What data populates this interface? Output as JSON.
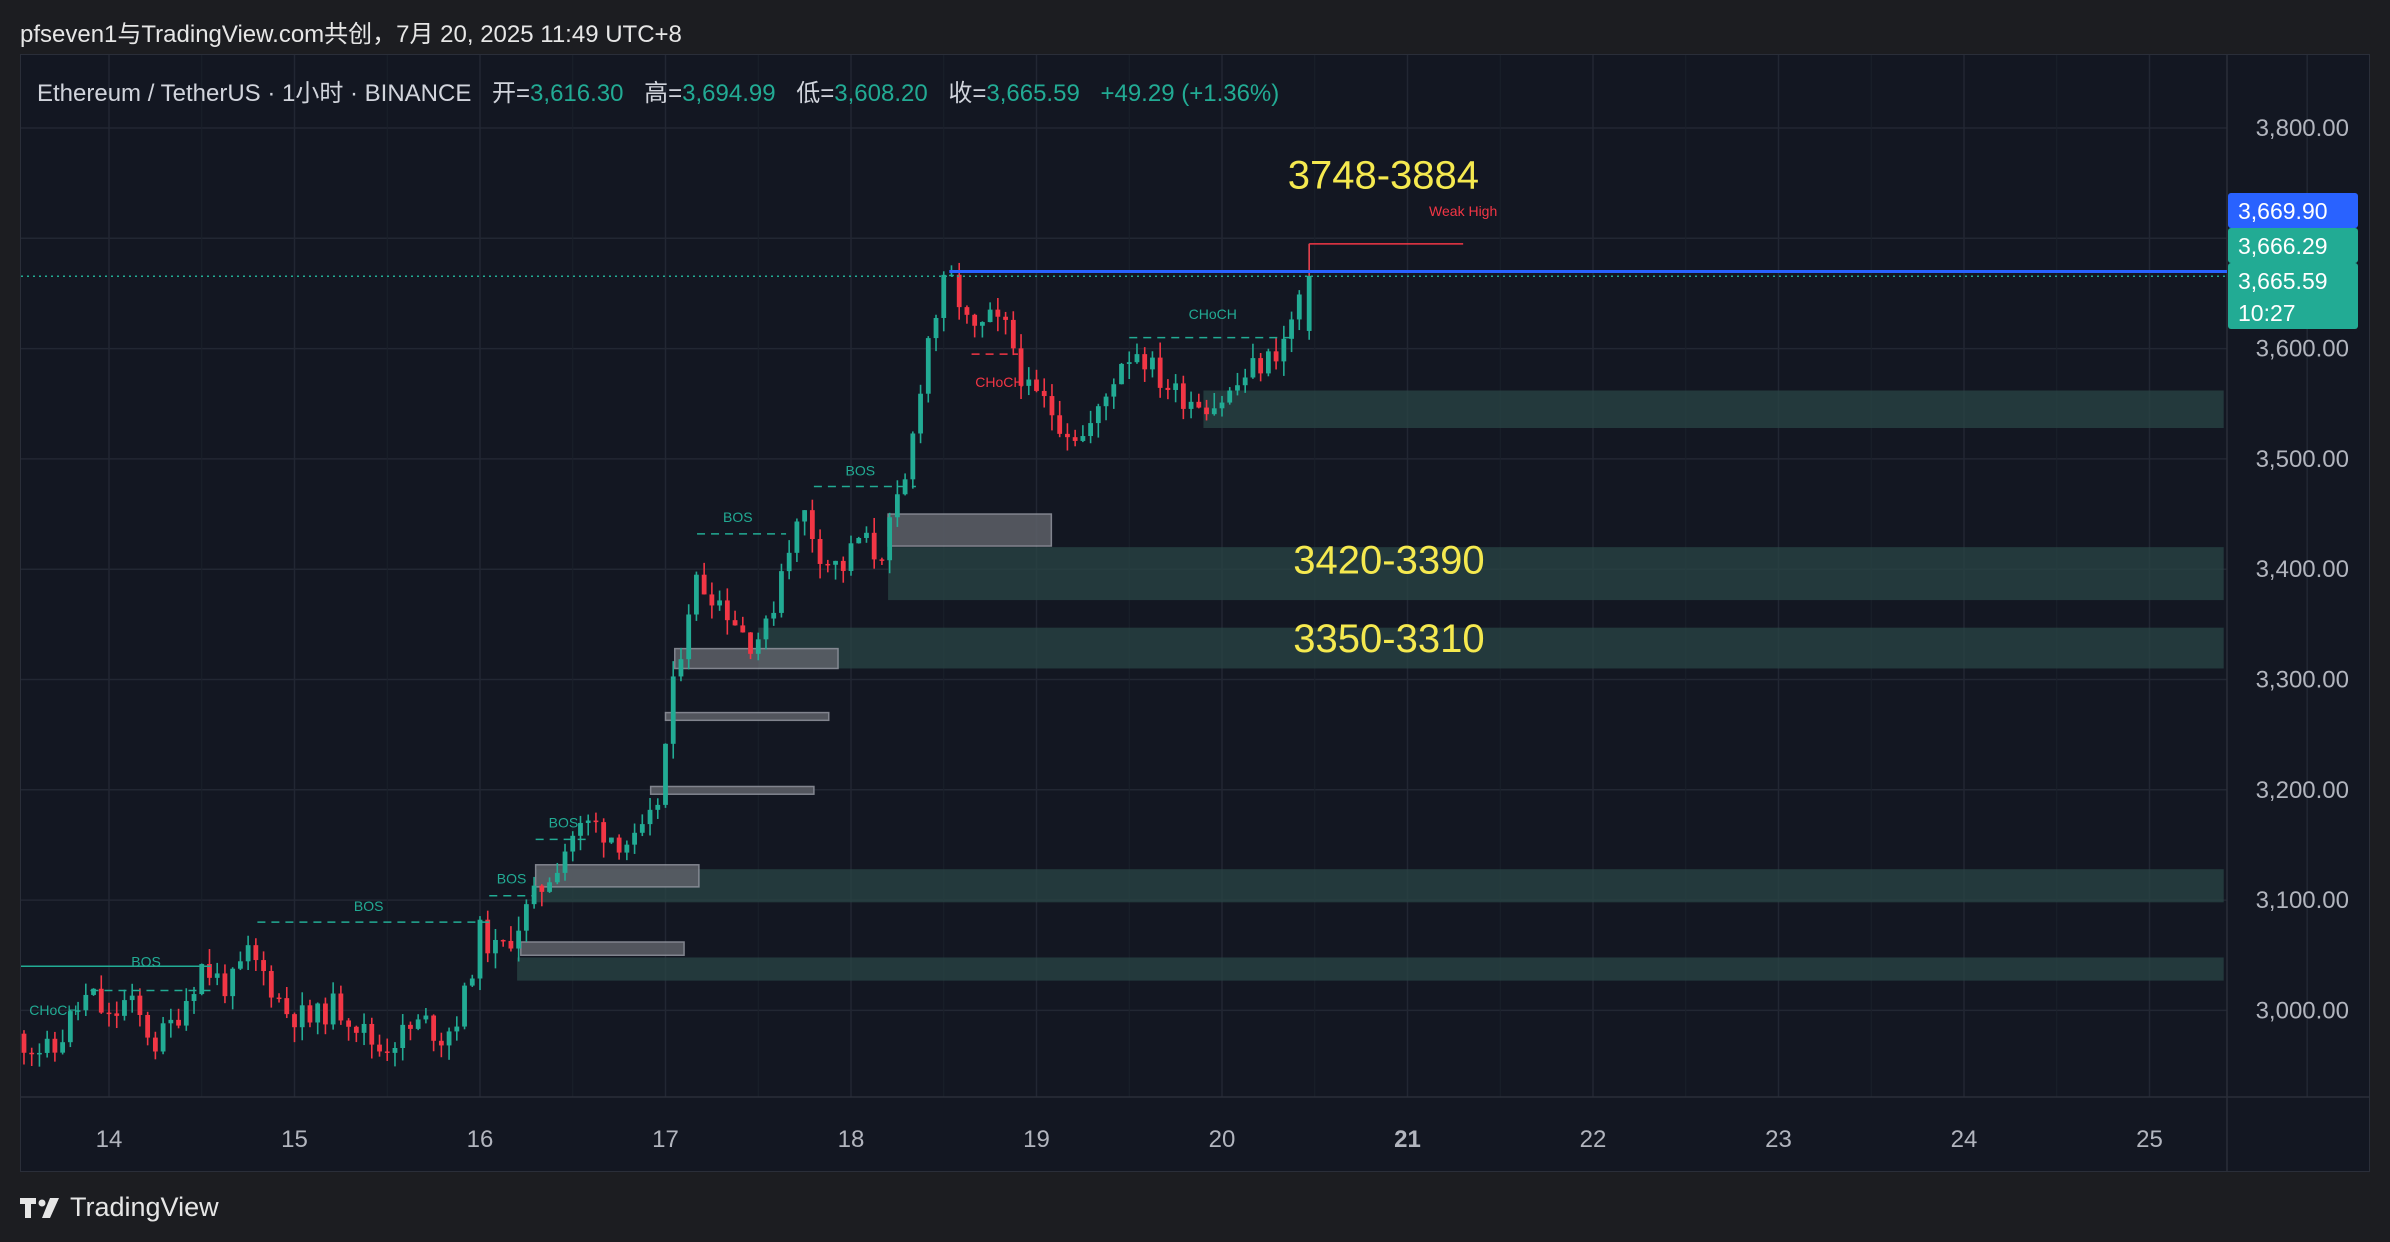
{
  "caption": "pfseven1与TradingView.com共创，7月 20, 2025 11:49 UTC+8",
  "legend": {
    "symbol": "Ethereum / TetherUS · 1小时 · BINANCE",
    "open_label": "开=",
    "open": "3,616.30",
    "high_label": "高=",
    "high": "3,694.99",
    "low_label": "低=",
    "low": "3,608.20",
    "close_label": "收=",
    "close": "3,665.59",
    "change": "+49.29 (+1.36%)"
  },
  "footer": {
    "brand": "TradingView",
    "logo_icon": "tradingview-logo-icon"
  },
  "colors": {
    "up": "#22ab94",
    "down": "#f23645",
    "zone": "#2a4646",
    "accent_blue": "#2962ff",
    "label_yellow": "#f5e94f",
    "bos": "#22ab94",
    "choch_red": "#f23645"
  },
  "chart_data": {
    "type": "candlestick",
    "title": "",
    "x_labels": [
      "14",
      "15",
      "16",
      "17",
      "18",
      "19",
      "20",
      "21",
      "22",
      "23",
      "24",
      "25"
    ],
    "y_ticks": [
      "3,800.00",
      "3,700.00",
      "3,600.00",
      "3,500.00",
      "3,400.00",
      "3,300.00",
      "3,200.00",
      "3,100.00",
      "3,000.00"
    ],
    "ylim": [
      2890,
      3905
    ],
    "price_tags": [
      {
        "label": "3,669.90",
        "price": 3669.9,
        "color": "#2962ff"
      },
      {
        "label": "3,666.29",
        "price": 3666.29,
        "color": "#22ab94"
      },
      {
        "label": "3,665.59",
        "price": 3665.59,
        "color": "#22ab94",
        "countdown": "10:27"
      }
    ],
    "path_points": [
      [
        13.5,
        2975
      ],
      [
        13.7,
        2960
      ],
      [
        13.8,
        2995
      ],
      [
        13.9,
        3015
      ],
      [
        14.0,
        2990
      ],
      [
        14.1,
        3010
      ],
      [
        14.25,
        2970
      ],
      [
        14.35,
        2990
      ],
      [
        14.5,
        3040
      ],
      [
        14.65,
        3020
      ],
      [
        14.75,
        3050
      ],
      [
        14.85,
        3030
      ],
      [
        14.95,
        3000
      ],
      [
        15.1,
        2990
      ],
      [
        15.2,
        3005
      ],
      [
        15.3,
        2995
      ],
      [
        15.45,
        2965
      ],
      [
        15.55,
        2975
      ],
      [
        15.7,
        2990
      ],
      [
        15.8,
        2975
      ],
      [
        15.9,
        3000
      ],
      [
        16.0,
        3070
      ],
      [
        16.1,
        3050
      ],
      [
        16.25,
        3090
      ],
      [
        16.4,
        3130
      ],
      [
        16.5,
        3160
      ],
      [
        16.6,
        3170
      ],
      [
        16.75,
        3155
      ],
      [
        16.85,
        3150
      ],
      [
        16.95,
        3180
      ],
      [
        17.0,
        3240
      ],
      [
        17.05,
        3300
      ],
      [
        17.15,
        3390
      ],
      [
        17.25,
        3380
      ],
      [
        17.35,
        3360
      ],
      [
        17.45,
        3335
      ],
      [
        17.55,
        3345
      ],
      [
        17.65,
        3420
      ],
      [
        17.75,
        3450
      ],
      [
        17.85,
        3410
      ],
      [
        17.95,
        3400
      ],
      [
        18.05,
        3430
      ],
      [
        18.15,
        3410
      ],
      [
        18.3,
        3480
      ],
      [
        18.4,
        3600
      ],
      [
        18.5,
        3655
      ],
      [
        18.55,
        3660
      ],
      [
        18.65,
        3610
      ],
      [
        18.75,
        3625
      ],
      [
        18.85,
        3615
      ],
      [
        18.95,
        3560
      ],
      [
        19.05,
        3550
      ],
      [
        19.15,
        3530
      ],
      [
        19.25,
        3520
      ],
      [
        19.35,
        3545
      ],
      [
        19.45,
        3590
      ],
      [
        19.55,
        3600
      ],
      [
        19.65,
        3575
      ],
      [
        19.75,
        3560
      ],
      [
        19.85,
        3555
      ],
      [
        19.95,
        3550
      ],
      [
        20.05,
        3560
      ],
      [
        20.15,
        3580
      ],
      [
        20.25,
        3590
      ],
      [
        20.35,
        3610
      ],
      [
        20.45,
        3665
      ]
    ],
    "demand_zones": [
      {
        "x0": 19.9,
        "x1": 25.4,
        "lo": 3528,
        "hi": 3562
      },
      {
        "x0": 18.2,
        "x1": 25.4,
        "lo": 3372,
        "hi": 3420
      },
      {
        "x0": 17.5,
        "x1": 25.4,
        "lo": 3310,
        "hi": 3347
      },
      {
        "x0": 16.3,
        "x1": 25.4,
        "lo": 3098,
        "hi": 3128
      },
      {
        "x0": 16.2,
        "x1": 25.4,
        "lo": 3027,
        "hi": 3048
      }
    ],
    "order_blocks": [
      {
        "x0": 18.2,
        "x1": 19.08,
        "lo": 3421,
        "hi": 3450
      },
      {
        "x0": 17.05,
        "x1": 17.93,
        "lo": 3310,
        "hi": 3328
      },
      {
        "x0": 17.0,
        "x1": 17.88,
        "lo": 3263,
        "hi": 3270
      },
      {
        "x0": 16.92,
        "x1": 17.8,
        "lo": 3196,
        "hi": 3203
      },
      {
        "x0": 16.3,
        "x1": 17.18,
        "lo": 3112,
        "hi": 3132
      },
      {
        "x0": 16.22,
        "x1": 17.1,
        "lo": 3050,
        "hi": 3062
      }
    ],
    "structure_labels": [
      {
        "text": "BOS",
        "x": 14.2,
        "price": 3040,
        "color": "#22ab94"
      },
      {
        "text": "BOS",
        "x": 15.4,
        "price": 3090,
        "color": "#22ab94"
      },
      {
        "text": "BOS",
        "x": 16.17,
        "price": 3115,
        "color": "#22ab94"
      },
      {
        "text": "BOS",
        "x": 16.45,
        "price": 3166,
        "color": "#22ab94"
      },
      {
        "text": "BOS",
        "x": 17.39,
        "price": 3443,
        "color": "#22ab94"
      },
      {
        "text": "BOS",
        "x": 18.05,
        "price": 3485,
        "color": "#22ab94"
      },
      {
        "text": "CHoCH",
        "x": 19.95,
        "price": 3627,
        "color": "#22ab94"
      },
      {
        "text": "CHoCH",
        "x": 18.8,
        "price": 3565,
        "color": "#f23645"
      },
      {
        "text": "CHoCH",
        "x": 13.7,
        "price": 2996,
        "color": "#22ab94"
      },
      {
        "text": "Weak High",
        "x": 21.3,
        "price": 3720,
        "color": "#f23645"
      }
    ],
    "annotations": [
      {
        "text": "3748-3884",
        "x": 20.87,
        "price": 3745
      },
      {
        "text": "3420-3390",
        "x": 20.9,
        "price": 3396
      },
      {
        "text": "3350-3310",
        "x": 20.9,
        "price": 3325
      }
    ]
  }
}
